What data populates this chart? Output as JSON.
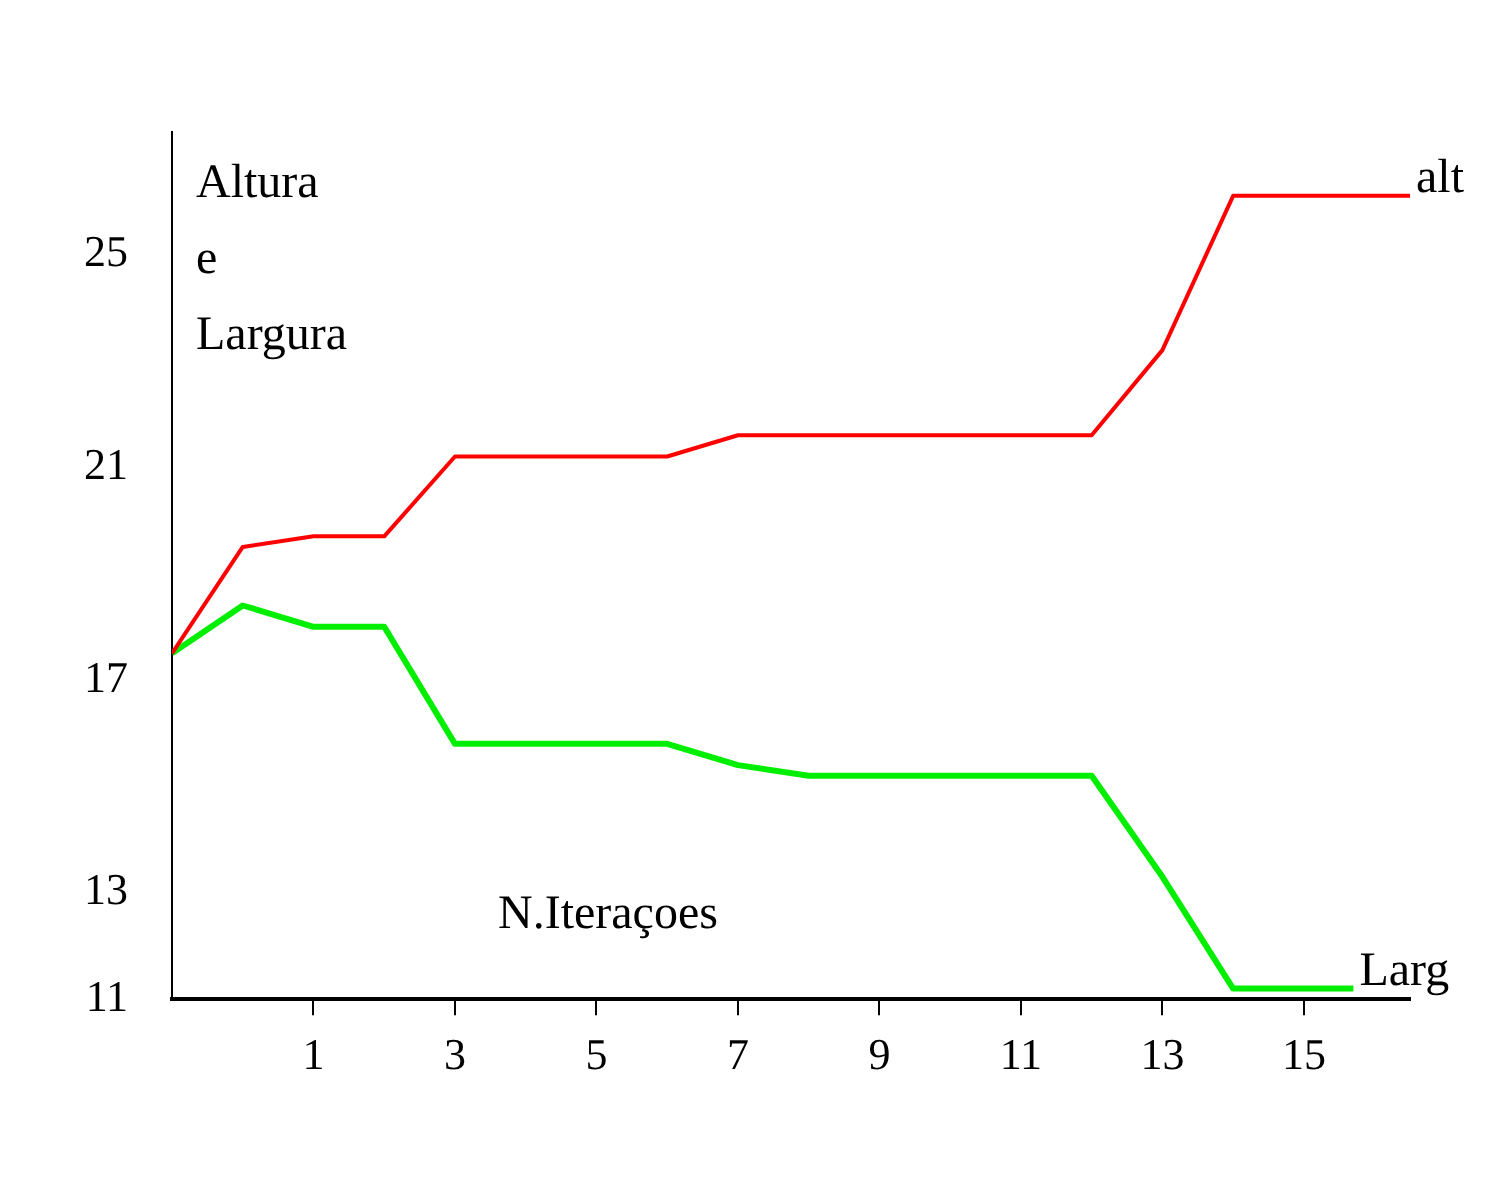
{
  "chart_data": {
    "type": "line",
    "ylabel": "Altura e Largura",
    "xlabel": "N.Iteraçoes",
    "xlim": [
      -1,
      16.5
    ],
    "xticks": [
      1,
      3,
      5,
      7,
      9,
      11,
      13,
      15
    ],
    "ylim": [
      11,
      27.3
    ],
    "yticks": [
      11,
      13,
      17,
      21,
      25
    ],
    "grid": false,
    "legend": false,
    "marker": "none",
    "line_style": "solid",
    "series": [
      {
        "name": "alt",
        "color": "#ff0000",
        "x": [
          -1,
          0,
          1,
          2,
          3,
          5,
          6,
          7,
          9,
          12,
          13,
          14,
          16.5
        ],
        "values": [
          17.5,
          19.5,
          19.7,
          19.7,
          21.2,
          21.2,
          21.2,
          21.6,
          21.6,
          21.6,
          23.2,
          26.1,
          26.1
        ]
      },
      {
        "name": "Larg",
        "color": "#00ee00",
        "x": [
          -1,
          0,
          1,
          2,
          3,
          6,
          7,
          8,
          12,
          13,
          14,
          15.7
        ],
        "values": [
          17.5,
          18.4,
          18.0,
          18.0,
          15.8,
          15.8,
          15.4,
          15.2,
          15.2,
          13.3,
          11.2,
          11.2
        ]
      }
    ]
  }
}
